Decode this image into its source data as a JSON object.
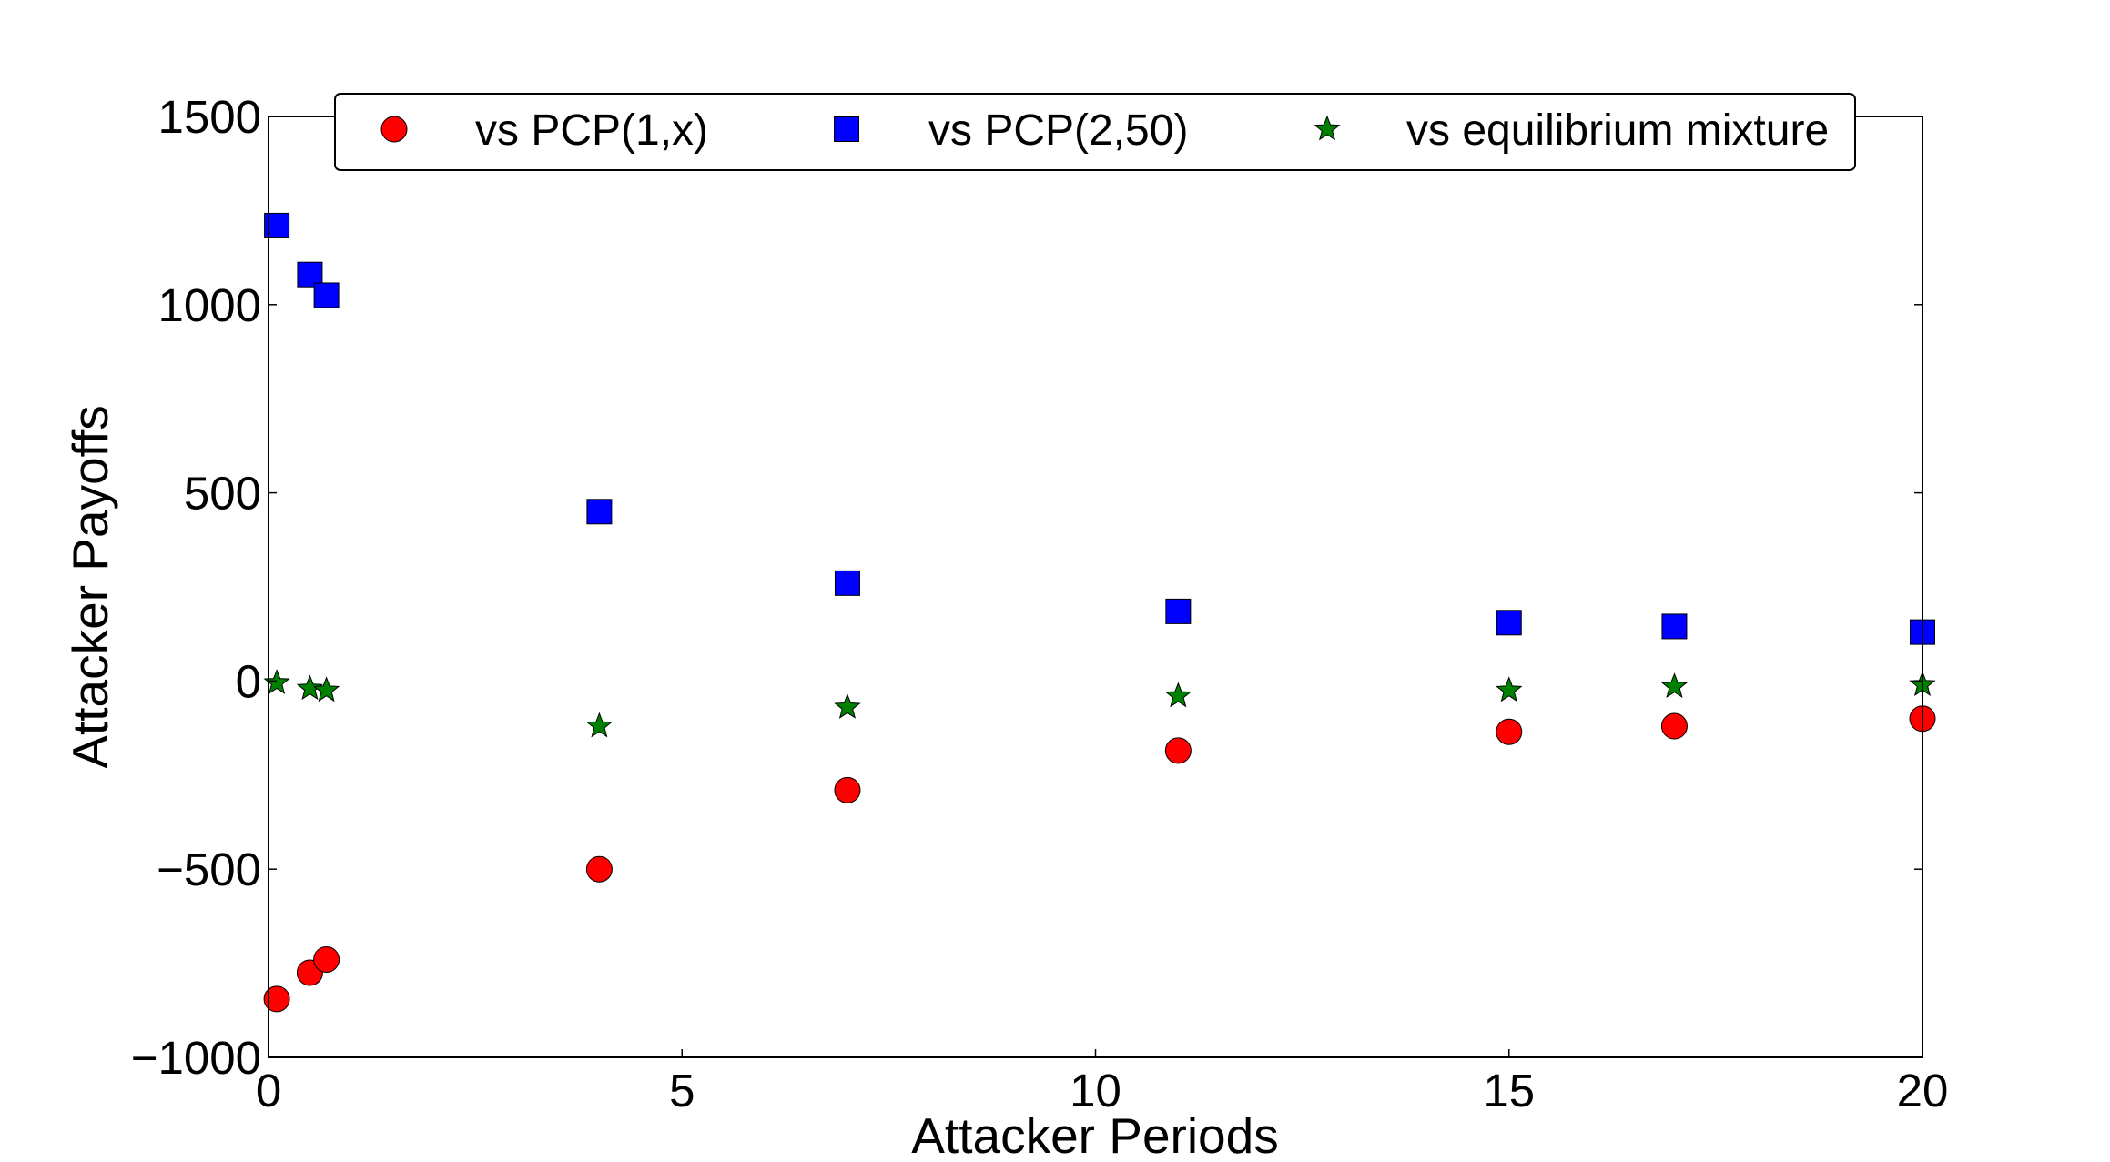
{
  "chart_data": {
    "type": "scatter",
    "title": "",
    "xlabel": "Attacker Periods",
    "ylabel": "Attacker Payoffs",
    "xlim": [
      0,
      20
    ],
    "ylim": [
      -1000,
      1500
    ],
    "xticks": [
      0,
      5,
      10,
      15,
      20
    ],
    "yticks": [
      -1000,
      -500,
      0,
      500,
      1000,
      1500
    ],
    "xtick_labels": [
      "0",
      "5",
      "10",
      "15",
      "20"
    ],
    "ytick_labels": [
      "−1000",
      "−500",
      "0",
      "500",
      "1000",
      "1500"
    ],
    "grid": false,
    "legend_position": "top",
    "series": [
      {
        "name": "vs PCP(1,x)",
        "marker": "circle",
        "color": "#ff0000",
        "x": [
          0.1,
          0.5,
          0.7,
          4,
          7,
          11,
          15,
          17,
          20
        ],
        "y": [
          -845,
          -775,
          -740,
          -500,
          -290,
          -185,
          -135,
          -120,
          -100
        ]
      },
      {
        "name": "vs PCP(2,50)",
        "marker": "square",
        "color": "#0000ff",
        "x": [
          0.1,
          0.5,
          0.7,
          4,
          7,
          11,
          15,
          17,
          20
        ],
        "y": [
          1210,
          1080,
          1025,
          450,
          260,
          185,
          155,
          145,
          130
        ]
      },
      {
        "name": "vs equilibrium mixture",
        "marker": "star",
        "color": "#008000",
        "x": [
          0.1,
          0.5,
          0.7,
          4,
          7,
          11,
          15,
          17,
          20
        ],
        "y": [
          -5,
          -20,
          -25,
          -120,
          -70,
          -40,
          -25,
          -15,
          -10
        ]
      }
    ]
  }
}
